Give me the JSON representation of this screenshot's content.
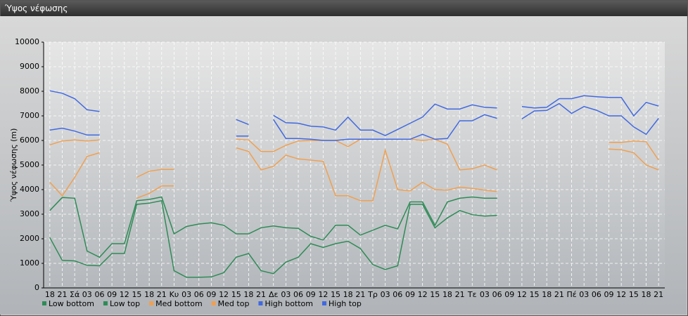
{
  "window": {
    "title": "Ύψος νέφωσης"
  },
  "chart_data": {
    "type": "line",
    "ylabel": "Ύψος νέφωσης (m)",
    "categories": [
      "18",
      "21",
      "Σά",
      "03",
      "06",
      "09",
      "12",
      "15",
      "18",
      "21",
      "Κυ",
      "03",
      "06",
      "09",
      "12",
      "15",
      "18",
      "21",
      "Δε",
      "03",
      "06",
      "09",
      "12",
      "15",
      "18",
      "21",
      "Τρ",
      "03",
      "06",
      "09",
      "12",
      "15",
      "18",
      "21",
      "Τε",
      "03",
      "06",
      "09",
      "12",
      "15",
      "18",
      "21",
      "Πέ",
      "03",
      "06",
      "09",
      "12",
      "15",
      "18",
      "21"
    ],
    "ylim": [
      0,
      10000
    ],
    "yticks": [
      0,
      1000,
      2000,
      3000,
      4000,
      5000,
      6000,
      7000,
      8000,
      9000,
      10000
    ],
    "grid": true,
    "series": [
      {
        "name": "Low bottom",
        "color": "#2e8b57",
        "values": [
          2050,
          1120,
          1100,
          920,
          900,
          1400,
          1400,
          3400,
          3450,
          3550,
          700,
          430,
          430,
          450,
          620,
          1250,
          1400,
          700,
          580,
          1050,
          1250,
          1800,
          1650,
          1800,
          1900,
          1600,
          950,
          750,
          900,
          3400,
          3400,
          2450,
          2850,
          3150,
          2980,
          2920,
          2950,
          null,
          null,
          null,
          null,
          null,
          null,
          null,
          null,
          null,
          null,
          null,
          null,
          null
        ]
      },
      {
        "name": "Low top",
        "color": "#2e8b57",
        "values": [
          3150,
          3680,
          3650,
          1500,
          1250,
          1800,
          1800,
          3550,
          3600,
          3700,
          2200,
          2500,
          2600,
          2650,
          2550,
          2200,
          2200,
          2450,
          2520,
          2450,
          2420,
          2100,
          1950,
          2550,
          2550,
          2150,
          2350,
          2550,
          2400,
          3500,
          3500,
          2550,
          3500,
          3650,
          3700,
          3650,
          3650,
          null,
          null,
          null,
          null,
          null,
          null,
          null,
          null,
          null,
          null,
          null,
          null,
          null
        ]
      },
      {
        "name": "Med bottom",
        "color": "#f0a050",
        "values": [
          4300,
          3750,
          4500,
          5350,
          5500,
          null,
          null,
          3650,
          3850,
          4150,
          4150,
          null,
          null,
          null,
          null,
          5700,
          5550,
          4800,
          4950,
          5400,
          5250,
          5200,
          5150,
          3750,
          3750,
          3550,
          3550,
          5600,
          4000,
          3950,
          4300,
          4000,
          3980,
          4100,
          4050,
          3980,
          3920,
          null,
          null,
          null,
          null,
          null,
          null,
          null,
          null,
          5650,
          5620,
          5500,
          5000,
          4800
        ]
      },
      {
        "name": "Med top",
        "color": "#f0a050",
        "values": [
          5820,
          5980,
          6020,
          5980,
          6020,
          null,
          null,
          4500,
          4750,
          4820,
          4820,
          null,
          null,
          null,
          null,
          6050,
          6020,
          5550,
          5550,
          5800,
          5980,
          6000,
          6000,
          6000,
          5750,
          6050,
          6050,
          6050,
          6050,
          6050,
          6000,
          6050,
          5850,
          4800,
          4850,
          5000,
          4800,
          null,
          null,
          null,
          null,
          null,
          null,
          null,
          null,
          5920,
          5920,
          5980,
          5950,
          5200
        ]
      },
      {
        "name": "High bottom",
        "color": "#4169e1",
        "values": [
          6420,
          6500,
          6380,
          6220,
          6220,
          null,
          null,
          null,
          null,
          null,
          null,
          null,
          null,
          null,
          null,
          6180,
          6180,
          null,
          6850,
          6080,
          6080,
          6050,
          6000,
          6000,
          6050,
          6050,
          6050,
          6050,
          6050,
          6050,
          6250,
          6050,
          6080,
          6800,
          6800,
          7050,
          6900,
          null,
          6880,
          7200,
          7220,
          7500,
          7100,
          7380,
          7230,
          7000,
          7000,
          6550,
          6250,
          6900
        ]
      },
      {
        "name": "High top",
        "color": "#4169e1",
        "values": [
          8020,
          7920,
          7700,
          7250,
          7180,
          null,
          null,
          null,
          null,
          null,
          null,
          null,
          null,
          null,
          null,
          6850,
          6650,
          null,
          7020,
          6720,
          6700,
          6580,
          6550,
          6420,
          6950,
          6420,
          6420,
          6200,
          6450,
          6700,
          6950,
          7480,
          7280,
          7280,
          7450,
          7350,
          7320,
          null,
          7380,
          7320,
          7350,
          7700,
          7700,
          7820,
          7780,
          7750,
          7750,
          7000,
          7550,
          7400
        ]
      }
    ]
  }
}
